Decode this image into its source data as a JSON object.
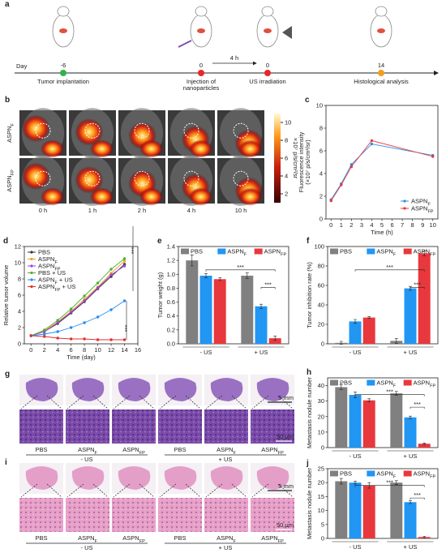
{
  "panels": {
    "a": {
      "letter": "a",
      "day_label": "Day",
      "interval": "4 h",
      "events": [
        {
          "day": "-6",
          "label": [
            "Tumor implantation"
          ],
          "color": "#2db34a"
        },
        {
          "day": "0",
          "label": [
            "Injection of",
            "nanoparticles"
          ],
          "color": "#e8262b"
        },
        {
          "day": "0",
          "label": [
            "US irradiation"
          ],
          "color": "#e8262b"
        },
        {
          "day": "14",
          "label": [
            "Histological analysis"
          ],
          "color": "#f39c1f"
        }
      ]
    },
    "b": {
      "letter": "b",
      "rows": [
        {
          "name": "ASPN",
          "subscript": "F"
        },
        {
          "name": "ASPN",
          "subscript": "FP"
        }
      ],
      "columns": [
        "0 h",
        "1 h",
        "2 h",
        "4 h",
        "10 h"
      ],
      "colorbar_label": "×10⁷ p/s/cm²/sr",
      "colorbar_lim": [
        1,
        11
      ],
      "colorbar_ticks": [
        2,
        4,
        6,
        8,
        10
      ]
    },
    "g": {
      "letter": "g",
      "columns": [
        {
          "name": "PBS"
        },
        {
          "name": "ASPN",
          "subscript": "F"
        },
        {
          "name": "ASPN",
          "subscript": "FP"
        },
        {
          "name": "PBS"
        },
        {
          "name": "ASPN",
          "subscript": "F"
        },
        {
          "name": "ASPN",
          "subscript": "FP"
        }
      ],
      "groups": [
        "- US",
        "+ US"
      ],
      "scale_top": "5 mm",
      "scale_bottom": "50 μm"
    },
    "i": {
      "letter": "i",
      "columns": [
        {
          "name": "PBS"
        },
        {
          "name": "ASPN",
          "subscript": "F"
        },
        {
          "name": "ASPN",
          "subscript": "FP"
        },
        {
          "name": "PBS"
        },
        {
          "name": "ASPN",
          "subscript": "F"
        },
        {
          "name": "ASPN",
          "subscript": "FP"
        }
      ],
      "groups": [
        "- US",
        "+ US"
      ],
      "scale_top": "5 mm",
      "scale_bottom": "50 μm"
    }
  },
  "chart_data": [
    {
      "type": "line",
      "panel": "c",
      "ylabel": "Fluorescence intensity",
      "ylabel2": "(×10⁷ p/s/cm²/sr)",
      "xlabel": "Time (h)",
      "x": [
        0,
        1,
        2,
        4,
        10
      ],
      "xlim": [
        -0.5,
        10.5
      ],
      "xticks": [
        0,
        1,
        2,
        3,
        4,
        5,
        6,
        7,
        8,
        9,
        10
      ],
      "ylim": [
        0,
        10
      ],
      "yticks": [
        0,
        2,
        4,
        6,
        8,
        10
      ],
      "legend": "lower right",
      "series": [
        {
          "name": "ASPN",
          "subscript": "F",
          "color": "#2f8fe6",
          "values": [
            1.7,
            3.1,
            4.8,
            6.6,
            5.6
          ]
        },
        {
          "name": "ASPN",
          "subscript": "FP",
          "color": "#e8383d",
          "values": [
            1.6,
            3.0,
            4.6,
            6.9,
            5.5
          ]
        }
      ]
    },
    {
      "type": "line",
      "panel": "d",
      "ylabel": "Relative tumor volume",
      "xlabel": "Time (day)",
      "x": [
        0,
        2,
        4,
        6,
        8,
        10,
        12,
        14
      ],
      "xlim": [
        -1,
        16
      ],
      "xticks": [
        0,
        2,
        4,
        6,
        8,
        10,
        12,
        14,
        16
      ],
      "ylim": [
        0,
        12
      ],
      "yticks": [
        0,
        2,
        4,
        6,
        8,
        10,
        12
      ],
      "legend": "upper left",
      "annotations": [
        "***",
        "***"
      ],
      "series": [
        {
          "name": "PBS",
          "color": "#333333",
          "values": [
            1,
            1.5,
            2.5,
            3.8,
            5.2,
            6.8,
            8.3,
            9.8
          ]
        },
        {
          "name": "ASPN",
          "subscript": "F",
          "color": "#f0a020",
          "values": [
            1,
            1.6,
            2.7,
            4.0,
            5.5,
            7.0,
            8.7,
            10.2
          ]
        },
        {
          "name": "ASPN",
          "subscript": "FP",
          "color": "#a040e0",
          "values": [
            1,
            1.5,
            2.6,
            3.9,
            5.3,
            6.9,
            8.5,
            9.6
          ]
        },
        {
          "name": "PBS",
          "suffix": " + US",
          "color": "#50b030",
          "values": [
            1,
            1.7,
            2.9,
            4.3,
            5.9,
            7.5,
            9.2,
            10.5
          ]
        },
        {
          "name": "ASPN",
          "subscript": "F",
          "suffix": " + US",
          "color": "#2090f0",
          "values": [
            1,
            1.2,
            1.5,
            2.0,
            2.6,
            3.3,
            4.2,
            5.3
          ]
        },
        {
          "name": "ASPN",
          "subscript": "FP",
          "suffix": " + US",
          "color": "#e03030",
          "values": [
            1,
            0.9,
            0.7,
            0.6,
            0.6,
            0.5,
            0.5,
            0.5
          ]
        }
      ]
    },
    {
      "type": "bar",
      "panel": "e",
      "ylabel": "Tumor weight (g)",
      "categories": [
        "- US",
        "+ US"
      ],
      "ylim": [
        0,
        1.4
      ],
      "yticks": [
        {
          "value": 0,
          "label": "0.0"
        },
        {
          "value": 0.2,
          "label": "0.2"
        },
        {
          "value": 0.4,
          "label": "0.4"
        },
        {
          "value": 0.6,
          "label": "0.6"
        },
        {
          "value": 0.8,
          "label": "0.8"
        },
        {
          "value": 1,
          "label": "1.0"
        },
        {
          "value": 1.2,
          "label": "1.2"
        },
        {
          "value": 1.4,
          "label": "1.4"
        }
      ],
      "annotations": [
        "***",
        "***"
      ],
      "series": [
        {
          "name": "PBS",
          "color": "#808080",
          "values": [
            1.2,
            0.98
          ],
          "errors": [
            0.08,
            0.04
          ]
        },
        {
          "name": "ASPN",
          "subscript": "F",
          "color": "#2196f3",
          "values": [
            0.98,
            0.54
          ],
          "errors": [
            0.03,
            0.03
          ]
        },
        {
          "name": "ASPN",
          "subscript": "FP",
          "color": "#e8383d",
          "values": [
            0.93,
            0.08
          ],
          "errors": [
            0.02,
            0.03
          ]
        }
      ]
    },
    {
      "type": "bar",
      "panel": "f",
      "ylabel": "Tumor inhibition rate (%)",
      "categories": [
        "- US",
        "+ US"
      ],
      "ylim": [
        0,
        100
      ],
      "yticks": [
        0,
        20,
        40,
        60,
        80,
        100
      ],
      "annotations": [
        "***",
        "***"
      ],
      "series": [
        {
          "name": "PBS",
          "color": "#808080",
          "values": [
            1,
            3
          ],
          "errors": [
            1.5,
            2.5
          ]
        },
        {
          "name": "ASPN",
          "subscript": "F",
          "color": "#2196f3",
          "values": [
            23,
            57
          ],
          "errors": [
            2,
            2
          ]
        },
        {
          "name": "ASPN",
          "subscript": "FP",
          "color": "#e8383d",
          "values": [
            27,
            93
          ],
          "errors": [
            1,
            2.5
          ]
        }
      ]
    },
    {
      "type": "bar",
      "panel": "h",
      "ylabel": "Metastasis nodule number",
      "categories": [
        "- US",
        "+ US"
      ],
      "ylim": [
        0,
        45
      ],
      "yticks": [
        0,
        10,
        20,
        30,
        40
      ],
      "annotations": [
        "***",
        "***"
      ],
      "series": [
        {
          "name": "PBS",
          "color": "#808080",
          "values": [
            39,
            35
          ],
          "errors": [
            1.5,
            1.2
          ]
        },
        {
          "name": "ASPN",
          "subscript": "F",
          "color": "#2196f3",
          "values": [
            34,
            19.5
          ],
          "errors": [
            1.8,
            0.8
          ]
        },
        {
          "name": "ASPN",
          "subscript": "FP",
          "color": "#e8383d",
          "values": [
            30.5,
            2.5
          ],
          "errors": [
            1,
            0.5
          ]
        }
      ]
    },
    {
      "type": "bar",
      "panel": "j",
      "ylabel": "Metastasis nodule number",
      "categories": [
        "- US",
        "+ US"
      ],
      "ylim": [
        0,
        25
      ],
      "yticks": [
        0,
        5,
        10,
        15,
        20,
        25
      ],
      "annotations": [
        "***",
        "***"
      ],
      "series": [
        {
          "name": "PBS",
          "color": "#808080",
          "values": [
            20.5,
            20
          ],
          "errors": [
            1,
            0.7
          ]
        },
        {
          "name": "ASPN",
          "subscript": "F",
          "color": "#2196f3",
          "values": [
            20,
            13
          ],
          "errors": [
            0.5,
            0.5
          ]
        },
        {
          "name": "ASPN",
          "subscript": "FP",
          "color": "#e8383d",
          "values": [
            19,
            0.5
          ],
          "errors": [
            1,
            0.3
          ]
        }
      ]
    }
  ]
}
